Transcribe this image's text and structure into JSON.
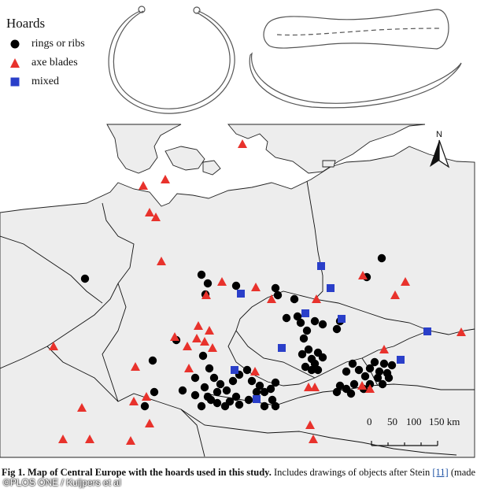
{
  "legend": {
    "title": "Hoards",
    "items": [
      {
        "label": "rings or ribs",
        "symbol": "circle",
        "color": "#000000"
      },
      {
        "label": "axe blades",
        "symbol": "triangle",
        "color": "#e8322c"
      },
      {
        "label": "mixed",
        "symbol": "square",
        "color": "#2a3fc9"
      }
    ]
  },
  "scalebar": {
    "labels": [
      "0",
      "50",
      "100",
      "150 km"
    ]
  },
  "north_label": "N",
  "caption": {
    "bold": "Fig 1. Map of Central Europe with the hoards used in this study.",
    "text": " Includes drawings of objects after Stein ",
    "ref": "[11]",
    "tail": " (made"
  },
  "watermark": "©PLOS ONE / Kuijpers et al",
  "colors": {
    "land": "#ededed",
    "border": "#111111",
    "ring": "#000000",
    "axe": "#e8322c",
    "mixed": "#2a3fc9"
  }
}
